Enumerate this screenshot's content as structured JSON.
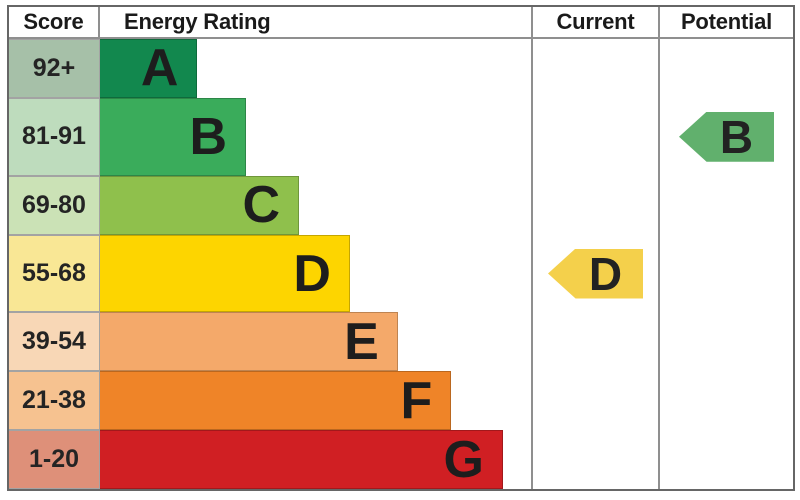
{
  "page": {
    "background": "#ffffff",
    "border_color": "#666666",
    "divider_color": "#8f8f8f"
  },
  "table": {
    "headers": {
      "score": "Score",
      "energy": "Energy Rating",
      "current": "Current",
      "potential": "Potential"
    }
  },
  "chart_data": {
    "type": "bar",
    "title": "Energy Rating (EPC band chart)",
    "columns": [
      "Score",
      "Energy Rating",
      "Current",
      "Potential"
    ],
    "bands": [
      {
        "letter": "A",
        "score_range": "92+",
        "bar_color": "#12884e",
        "score_bg": "#a6c0a8",
        "bar_width_pct": 22.6
      },
      {
        "letter": "B",
        "score_range": "81-91",
        "bar_color": "#3aac5b",
        "score_bg": "#bedcbd",
        "bar_width_pct": 33.9
      },
      {
        "letter": "C",
        "score_range": "69-80",
        "bar_color": "#8fc04c",
        "score_bg": "#cbe2b6",
        "bar_width_pct": 46.2
      },
      {
        "letter": "D",
        "score_range": "55-68",
        "bar_color": "#fdd500",
        "score_bg": "#f9e795",
        "bar_width_pct": 58.0
      },
      {
        "letter": "E",
        "score_range": "39-54",
        "bar_color": "#f4a96a",
        "score_bg": "#f8d7b6",
        "bar_width_pct": 69.1
      },
      {
        "letter": "F",
        "score_range": "21-38",
        "bar_color": "#ef8428",
        "score_bg": "#f6c290",
        "bar_width_pct": 81.5
      },
      {
        "letter": "G",
        "score_range": "1-20",
        "bar_color": "#d01f23",
        "score_bg": "#de9079",
        "bar_width_pct": 93.5
      }
    ],
    "current": {
      "letter": "D",
      "band_index": 3,
      "score_range": "55-68",
      "arrow_color": "#f4d04b"
    },
    "potential": {
      "letter": "B",
      "band_index": 1,
      "score_range": "81-91",
      "arrow_color": "#61b06d"
    }
  }
}
